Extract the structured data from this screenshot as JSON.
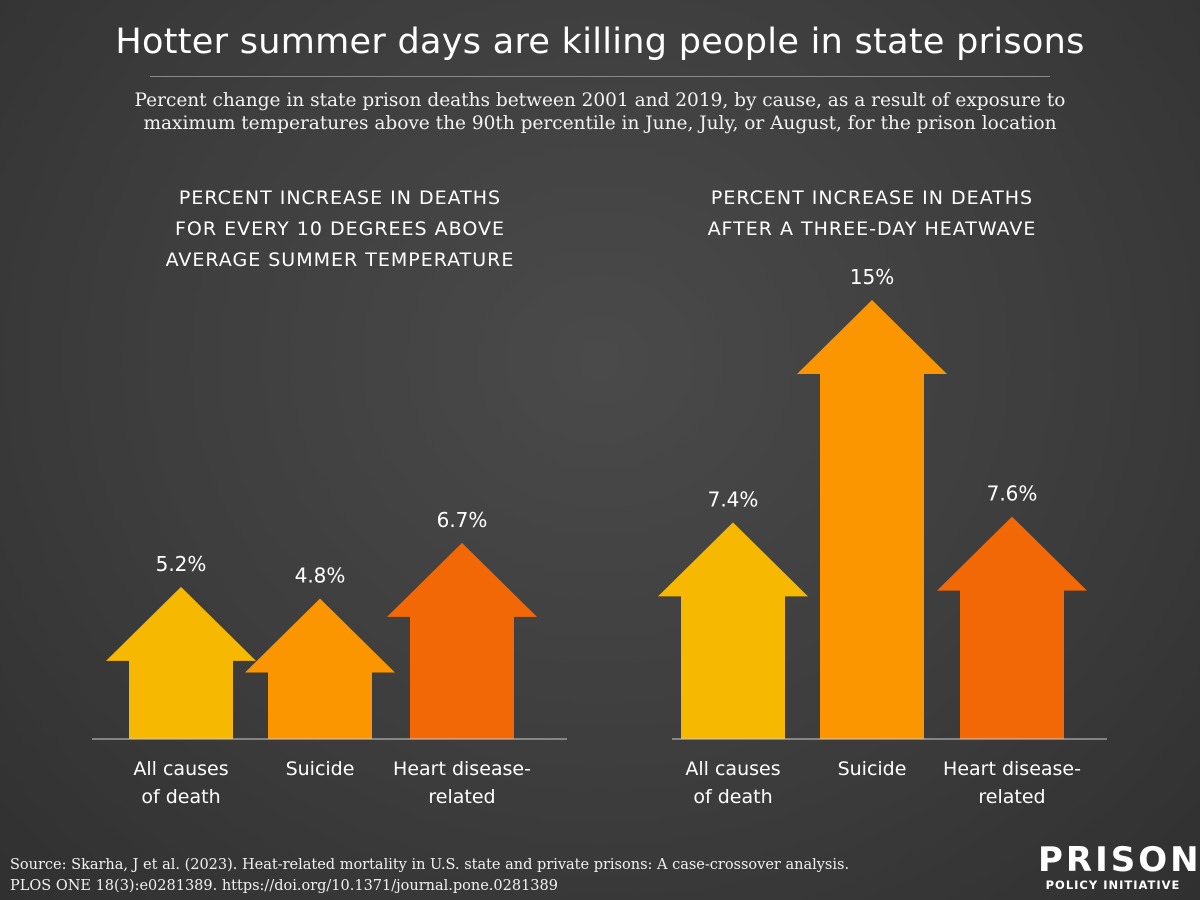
{
  "title": "Hotter summer days are killing people in state prisons",
  "subtitle_lines": [
    "Percent change in state prison deaths between 2001 and 2019, by cause, as a result of exposure to",
    "maximum temperatures above the 90th percentile in June, July, or August, for the prison location"
  ],
  "colors": {
    "background": "#3f3f3f",
    "all_causes": "#f6b800",
    "suicide": "#fb9500",
    "heart": "#f26806"
  },
  "chart_data": [
    {
      "type": "bar",
      "title_lines": [
        "PERCENT INCREASE IN DEATHS",
        "FOR EVERY 10 DEGREES ABOVE",
        "AVERAGE SUMMER TEMPERATURE"
      ],
      "categories": [
        [
          "All causes",
          "of death"
        ],
        [
          "Suicide"
        ],
        [
          "Heart disease-",
          "related"
        ]
      ],
      "values": [
        5.2,
        4.8,
        6.7
      ],
      "data_labels": [
        "5.2%",
        "4.8%",
        "6.7%"
      ],
      "ylim": [
        0,
        15
      ],
      "grid": false
    },
    {
      "type": "bar",
      "title_lines": [
        "PERCENT INCREASE IN DEATHS",
        "AFTER A THREE-DAY HEATWAVE"
      ],
      "categories": [
        [
          "All causes",
          "of death"
        ],
        [
          "Suicide"
        ],
        [
          "Heart disease-",
          "related"
        ]
      ],
      "values": [
        7.4,
        15,
        7.6
      ],
      "data_labels": [
        "7.4%",
        "15%",
        "7.6%"
      ],
      "ylim": [
        0,
        15
      ],
      "grid": false
    }
  ],
  "source_lines": [
    "Source: Skarha, J et al. (2023). Heat-related mortality in U.S. state and private prisons: A case-crossover analysis.",
    "PLOS ONE 18(3):e0281389. https://doi.org/10.1371/journal.pone.0281389"
  ],
  "logo": {
    "line1": "PRISON",
    "line2": "POLICY INITIATIVE"
  }
}
